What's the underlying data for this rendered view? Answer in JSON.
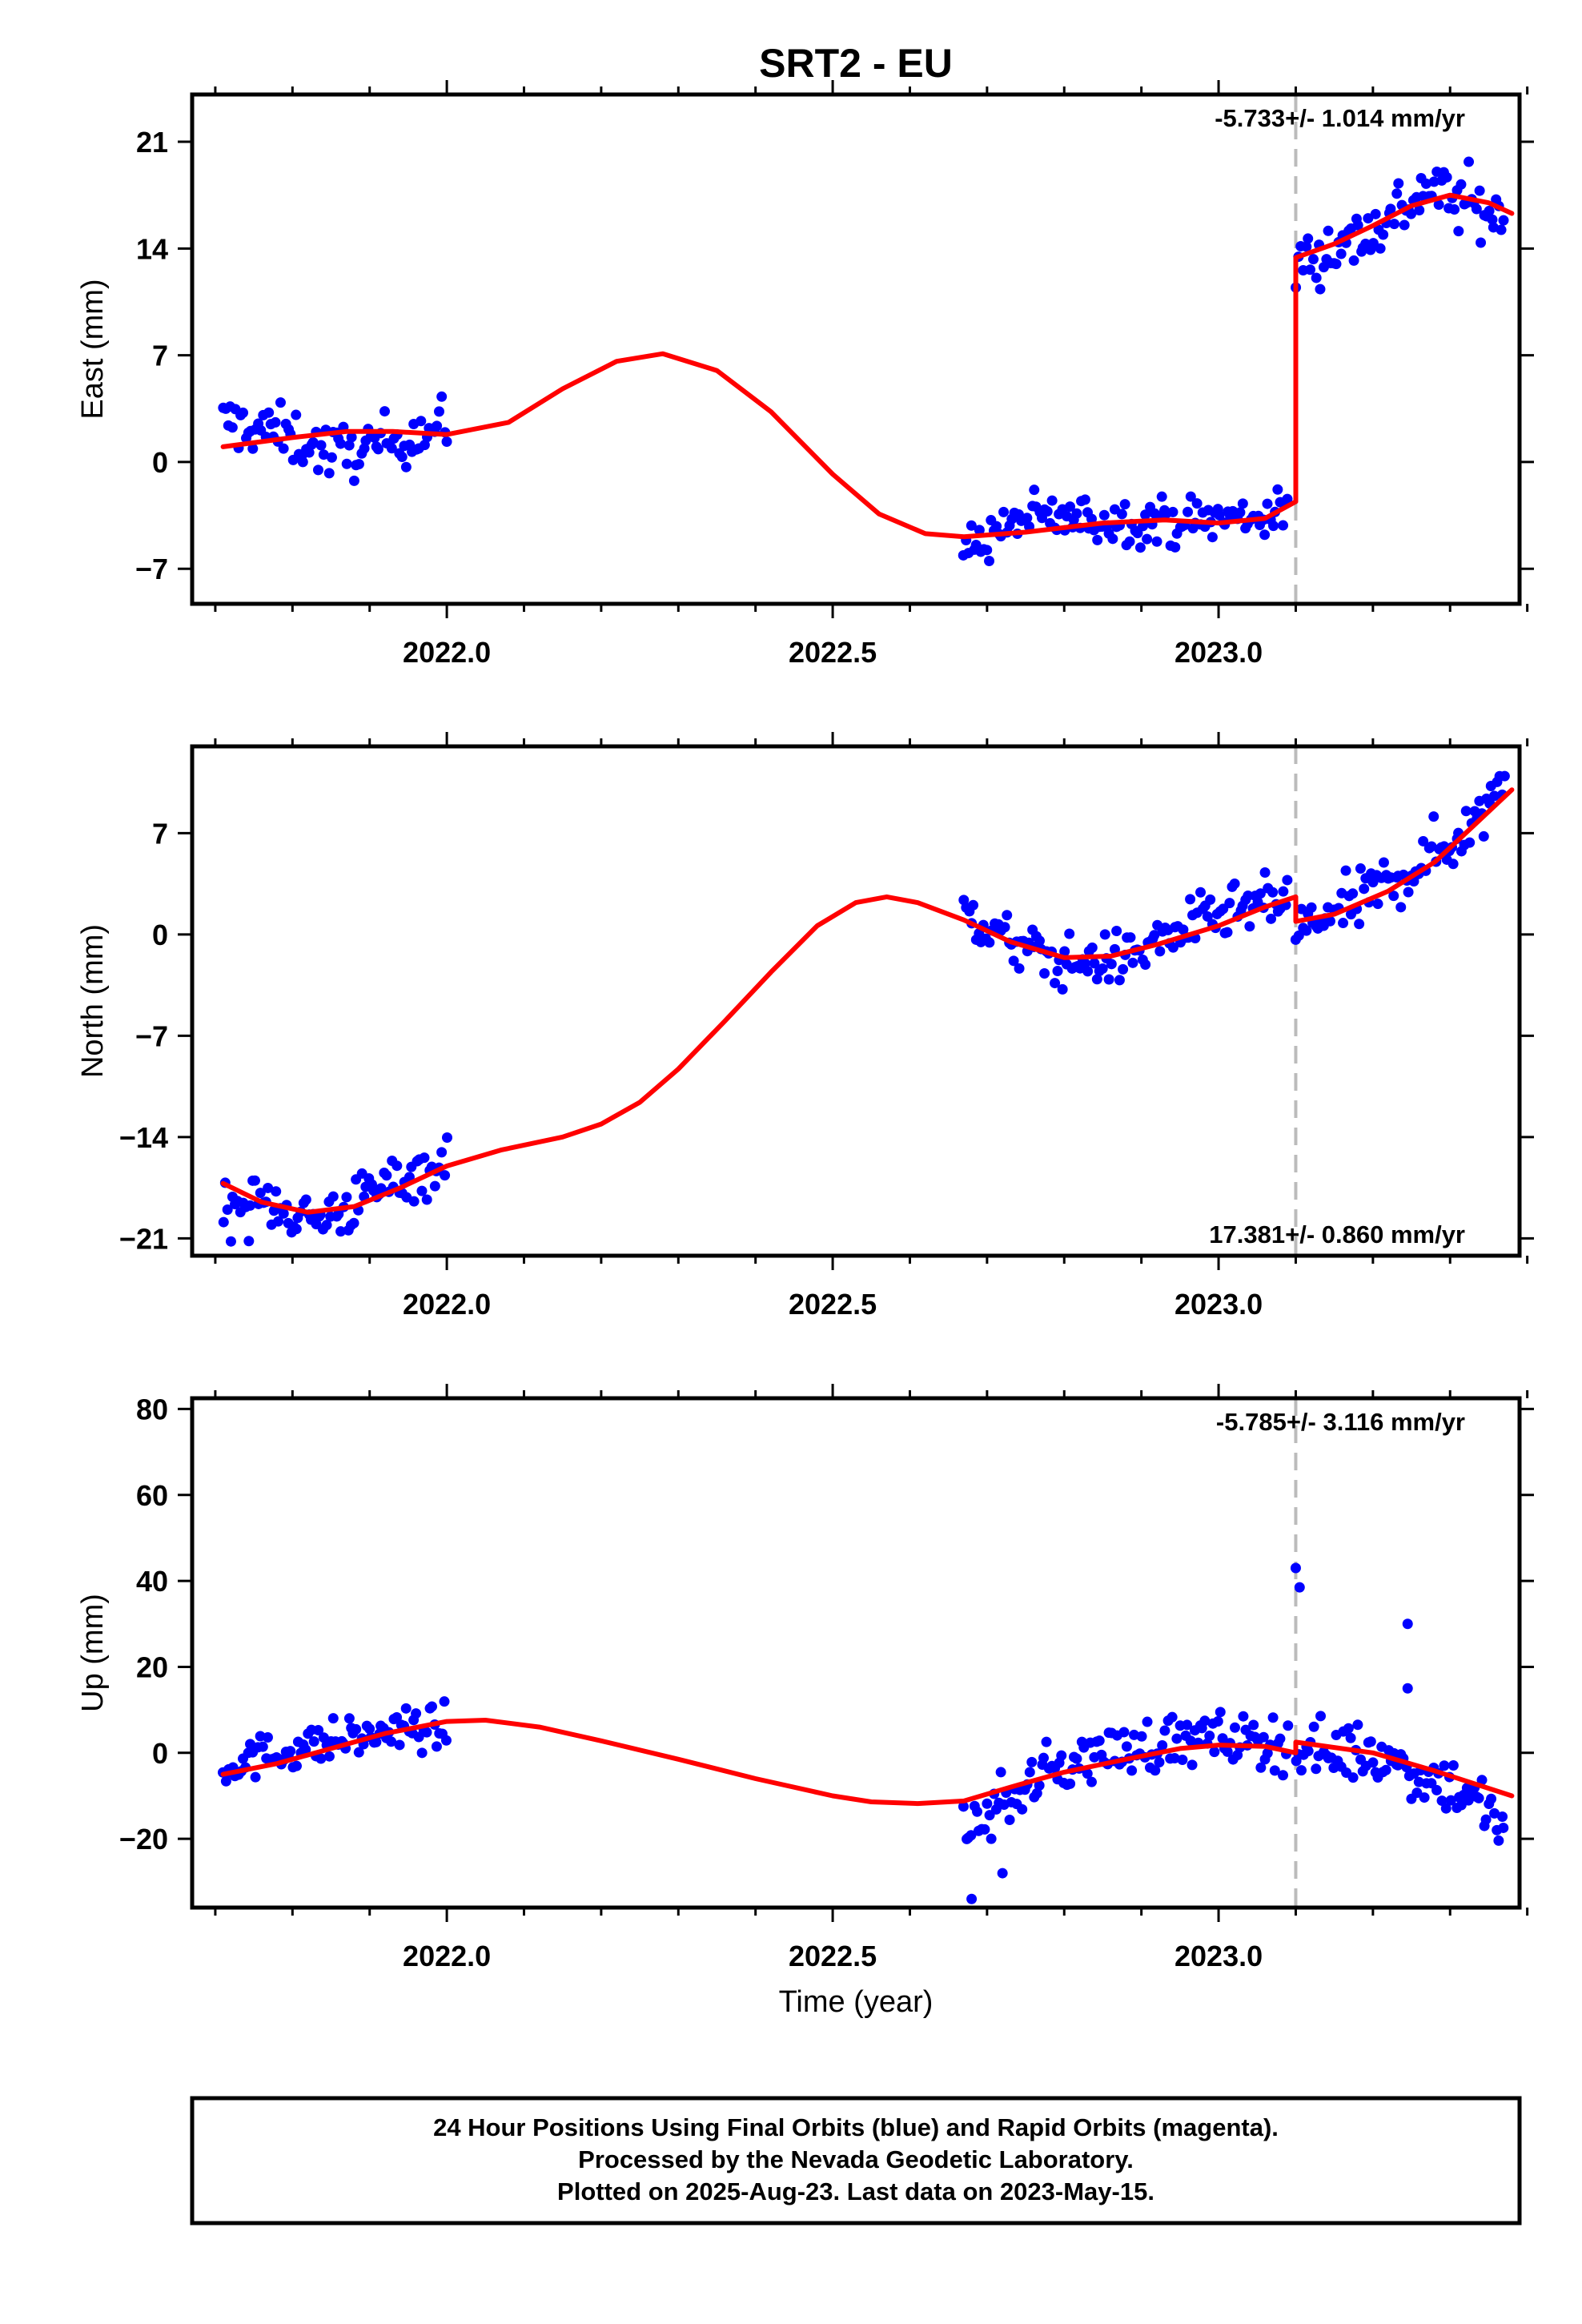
{
  "title": "SRT2 - EU",
  "xlabel": "Time (year)",
  "footer": [
    "24 Hour Positions Using Final Orbits (blue) and Rapid Orbits (magenta).",
    "Processed by the Nevada Geodetic Laboratory.",
    "Plotted on 2025-Aug-23. Last data on 2023-May-15."
  ],
  "colors": {
    "data": "#0000ff",
    "model": "#ff0000",
    "break_line": "#bbbbbb",
    "frame": "#000000"
  },
  "chart_data": [
    {
      "type": "scatter",
      "name": "east",
      "ylabel": "East (mm)",
      "rate_label": "-5.733+/- 1.014 mm/yr",
      "rate_position": "top-right",
      "xlim": [
        2021.67,
        2023.39
      ],
      "ylim": [
        -9.3,
        24.1
      ],
      "xticks": [
        "2022.0",
        "2022.5",
        "2023.0"
      ],
      "yticks": [
        "-7",
        "0",
        "7",
        "14",
        "21"
      ],
      "break_x": 2023.1,
      "series": [
        {
          "role": "data",
          "segments": [
            {
              "x0": 2021.71,
              "x1": 2022.0,
              "mean": [
                [
                  2021.71,
                  2.6
                ],
                [
                  2021.76,
                  2.2
                ],
                [
                  2021.8,
                  1.6
                ],
                [
                  2021.85,
                  0.6
                ],
                [
                  2021.9,
                  0.9
                ],
                [
                  2021.95,
                  1.8
                ],
                [
                  2022.0,
                  2.4
                ]
              ],
              "noise": 1.3
            },
            {
              "x0": 2022.67,
              "x1": 2023.09,
              "mean": [
                [
                  2022.67,
                  -5.8
                ],
                [
                  2022.75,
                  -3.6
                ],
                [
                  2022.85,
                  -3.8
                ],
                [
                  2022.95,
                  -3.9
                ],
                [
                  2023.09,
                  -3.4
                ]
              ],
              "noise": 1.1
            },
            {
              "x0": 2023.1,
              "x1": 2023.37,
              "mean": [
                [
                  2023.1,
                  13.0
                ],
                [
                  2023.2,
                  15.2
                ],
                [
                  2023.27,
                  18.0
                ],
                [
                  2023.37,
                  16.0
                ]
              ],
              "noise": 1.5
            }
          ]
        },
        {
          "role": "model",
          "points": [
            [
              2021.71,
              1.0
            ],
            [
              2021.8,
              1.6
            ],
            [
              2021.87,
              2.0
            ],
            [
              2021.93,
              2.0
            ],
            [
              2022.0,
              1.8
            ],
            [
              2022.08,
              2.6
            ],
            [
              2022.15,
              4.8
            ],
            [
              2022.22,
              6.6
            ],
            [
              2022.28,
              7.1
            ],
            [
              2022.35,
              6.0
            ],
            [
              2022.42,
              3.3
            ],
            [
              2022.5,
              -0.8
            ],
            [
              2022.56,
              -3.4
            ],
            [
              2022.62,
              -4.7
            ],
            [
              2022.67,
              -4.9
            ],
            [
              2022.75,
              -4.6
            ],
            [
              2022.85,
              -4.0
            ],
            [
              2022.93,
              -3.8
            ],
            [
              2023.0,
              -4.0
            ],
            [
              2023.06,
              -3.7
            ],
            [
              2023.1,
              -2.6
            ],
            [
              2023.1,
              13.4
            ],
            [
              2023.15,
              14.3
            ],
            [
              2023.2,
              15.5
            ],
            [
              2023.25,
              16.8
            ],
            [
              2023.3,
              17.5
            ],
            [
              2023.35,
              17.0
            ],
            [
              2023.38,
              16.3
            ]
          ]
        }
      ]
    },
    {
      "type": "scatter",
      "name": "north",
      "ylabel": "North (mm)",
      "rate_label": "17.381+/- 0.860 mm/yr",
      "rate_position": "bottom-right",
      "xlim": [
        2021.67,
        2023.39
      ],
      "ylim": [
        -22.2,
        13.0
      ],
      "xticks": [
        "2022.0",
        "2022.5",
        "2023.0"
      ],
      "yticks": [
        "-21",
        "-14",
        "-7",
        "0",
        "7"
      ],
      "break_x": 2023.1,
      "series": [
        {
          "role": "data",
          "segments": [
            {
              "x0": 2021.71,
              "x1": 2022.0,
              "mean": [
                [
                  2021.71,
                  -18.8
                ],
                [
                  2021.78,
                  -18.6
                ],
                [
                  2021.83,
                  -19.8
                ],
                [
                  2021.88,
                  -18.6
                ],
                [
                  2021.94,
                  -16.8
                ],
                [
                  2022.0,
                  -15.8
                ]
              ],
              "noise": 1.4
            },
            {
              "x0": 2022.67,
              "x1": 2023.09,
              "mean": [
                [
                  2022.67,
                  1.6
                ],
                [
                  2022.73,
                  -0.6
                ],
                [
                  2022.8,
                  -2.0
                ],
                [
                  2022.88,
                  -1.6
                ],
                [
                  2022.95,
                  0.3
                ],
                [
                  2023.02,
                  1.6
                ],
                [
                  2023.09,
                  2.4
                ]
              ],
              "noise": 1.3
            },
            {
              "x0": 2023.1,
              "x1": 2023.37,
              "mean": [
                [
                  2023.1,
                  0.2
                ],
                [
                  2023.18,
                  2.2
                ],
                [
                  2023.27,
                  5.2
                ],
                [
                  2023.33,
                  7.5
                ],
                [
                  2023.37,
                  11.2
                ]
              ],
              "noise": 1.5
            }
          ]
        },
        {
          "role": "model",
          "points": [
            [
              2021.71,
              -17.2
            ],
            [
              2021.76,
              -18.5
            ],
            [
              2021.82,
              -19.2
            ],
            [
              2021.88,
              -18.8
            ],
            [
              2021.94,
              -17.5
            ],
            [
              2022.0,
              -16.0
            ],
            [
              2022.07,
              -14.9
            ],
            [
              2022.15,
              -14.0
            ],
            [
              2022.2,
              -13.1
            ],
            [
              2022.25,
              -11.6
            ],
            [
              2022.3,
              -9.3
            ],
            [
              2022.36,
              -6.0
            ],
            [
              2022.42,
              -2.6
            ],
            [
              2022.48,
              0.6
            ],
            [
              2022.53,
              2.2
            ],
            [
              2022.57,
              2.6
            ],
            [
              2022.61,
              2.2
            ],
            [
              2022.67,
              1.0
            ],
            [
              2022.73,
              -0.5
            ],
            [
              2022.8,
              -1.6
            ],
            [
              2022.86,
              -1.5
            ],
            [
              2022.92,
              -0.7
            ],
            [
              2023.0,
              0.6
            ],
            [
              2023.06,
              1.9
            ],
            [
              2023.1,
              2.6
            ],
            [
              2023.1,
              0.9
            ],
            [
              2023.15,
              1.4
            ],
            [
              2023.22,
              3.0
            ],
            [
              2023.28,
              5.0
            ],
            [
              2023.33,
              7.5
            ],
            [
              2023.38,
              10.0
            ]
          ]
        }
      ]
    },
    {
      "type": "scatter",
      "name": "up",
      "ylabel": "Up (mm)",
      "rate_label": "-5.785+/- 3.116 mm/yr",
      "rate_position": "top-right",
      "xlim": [
        2021.67,
        2023.39
      ],
      "ylim": [
        -36.0,
        82.5
      ],
      "xticks": [
        "2022.0",
        "2022.5",
        "2023.0"
      ],
      "yticks": [
        "-20",
        "0",
        "20",
        "40",
        "60",
        "80"
      ],
      "break_x": 2023.1,
      "series": [
        {
          "role": "data",
          "segments": [
            {
              "x0": 2021.71,
              "x1": 2022.0,
              "mean": [
                [
                  2021.71,
                  -3.0
                ],
                [
                  2021.8,
                  1.0
                ],
                [
                  2021.88,
                  3.5
                ],
                [
                  2021.95,
                  5.5
                ],
                [
                  2022.0,
                  6.0
                ]
              ],
              "noise": 3.5
            },
            {
              "x0": 2022.67,
              "x1": 2023.09,
              "mean": [
                [
                  2022.67,
                  -18.0
                ],
                [
                  2022.72,
                  -12.0
                ],
                [
                  2022.78,
                  -4.0
                ],
                [
                  2022.85,
                  0.0
                ],
                [
                  2022.95,
                  3.0
                ],
                [
                  2023.05,
                  3.0
                ],
                [
                  2023.09,
                  2.0
                ]
              ],
              "noise": 4.5
            },
            {
              "x0": 2023.1,
              "x1": 2023.37,
              "mean": [
                [
                  2023.1,
                  1.0
                ],
                [
                  2023.2,
                  0.0
                ],
                [
                  2023.28,
                  -6.0
                ],
                [
                  2023.33,
                  -10.0
                ],
                [
                  2023.37,
                  -18.0
                ]
              ],
              "noise": 5.0
            }
          ],
          "outliers": [
            [
              2023.1,
              43.0
            ],
            [
              2023.105,
              38.5
            ],
            [
              2023.245,
              30.0
            ],
            [
              2023.245,
              15.0
            ],
            [
              2022.68,
              -34.0
            ],
            [
              2022.72,
              -28.0
            ]
          ]
        },
        {
          "role": "model",
          "points": [
            [
              2021.71,
              -5.0
            ],
            [
              2021.78,
              -2.5
            ],
            [
              2021.85,
              1.0
            ],
            [
              2021.92,
              4.5
            ],
            [
              2022.0,
              7.3
            ],
            [
              2022.05,
              7.6
            ],
            [
              2022.12,
              6.0
            ],
            [
              2022.2,
              2.8
            ],
            [
              2022.3,
              -1.5
            ],
            [
              2022.4,
              -6.0
            ],
            [
              2022.5,
              -10.0
            ],
            [
              2022.55,
              -11.4
            ],
            [
              2022.61,
              -11.8
            ],
            [
              2022.67,
              -11.2
            ],
            [
              2022.73,
              -8.0
            ],
            [
              2022.8,
              -4.5
            ],
            [
              2022.88,
              -1.5
            ],
            [
              2022.95,
              1.0
            ],
            [
              2023.0,
              1.8
            ],
            [
              2023.06,
              1.5
            ],
            [
              2023.1,
              0.0
            ],
            [
              2023.1,
              2.5
            ],
            [
              2023.2,
              0.0
            ],
            [
              2023.28,
              -4.2
            ],
            [
              2023.38,
              -10.0
            ]
          ]
        }
      ]
    }
  ]
}
